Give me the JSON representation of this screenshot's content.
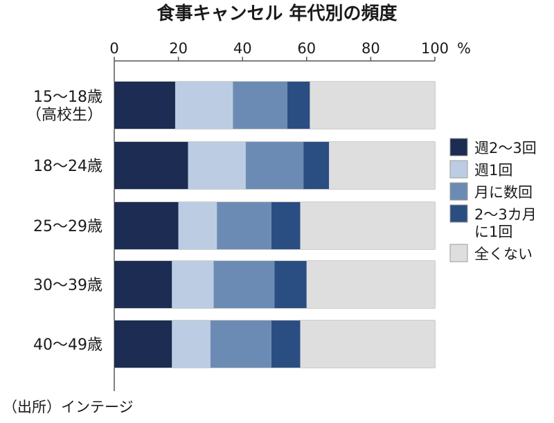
{
  "chart_data": {
    "type": "bar",
    "orientation": "horizontal",
    "stacked": true,
    "title": "食事キャンセル 年代別の頻度",
    "x_unit": "%",
    "xlim": [
      0,
      100
    ],
    "x_ticks": [
      "0",
      "20",
      "40",
      "60",
      "80",
      "100"
    ],
    "grid": false,
    "legend_position": "right",
    "categories": [
      [
        "15～18歳",
        "（高校生）"
      ],
      [
        "18～24歳"
      ],
      [
        "25～29歳"
      ],
      [
        "30～39歳"
      ],
      [
        "40～49歳"
      ]
    ],
    "series": [
      {
        "name": [
          "週2～3回"
        ],
        "color": "#1c2c52",
        "values": [
          19,
          23,
          20,
          18,
          18
        ]
      },
      {
        "name": [
          "週1回"
        ],
        "color": "#bccde3",
        "values": [
          18,
          18,
          12,
          13,
          12
        ]
      },
      {
        "name": [
          "月に数回"
        ],
        "color": "#6c8bb4",
        "values": [
          17,
          18,
          17,
          19,
          19
        ]
      },
      {
        "name": [
          "2～3カ月",
          "に1回"
        ],
        "color": "#2a4e82",
        "values": [
          7,
          8,
          9,
          10,
          9
        ]
      },
      {
        "name": [
          "全くない"
        ],
        "color": "#dedede",
        "values": [
          39,
          33,
          42,
          40,
          42
        ]
      }
    ],
    "source": "（出所）インテージ"
  }
}
